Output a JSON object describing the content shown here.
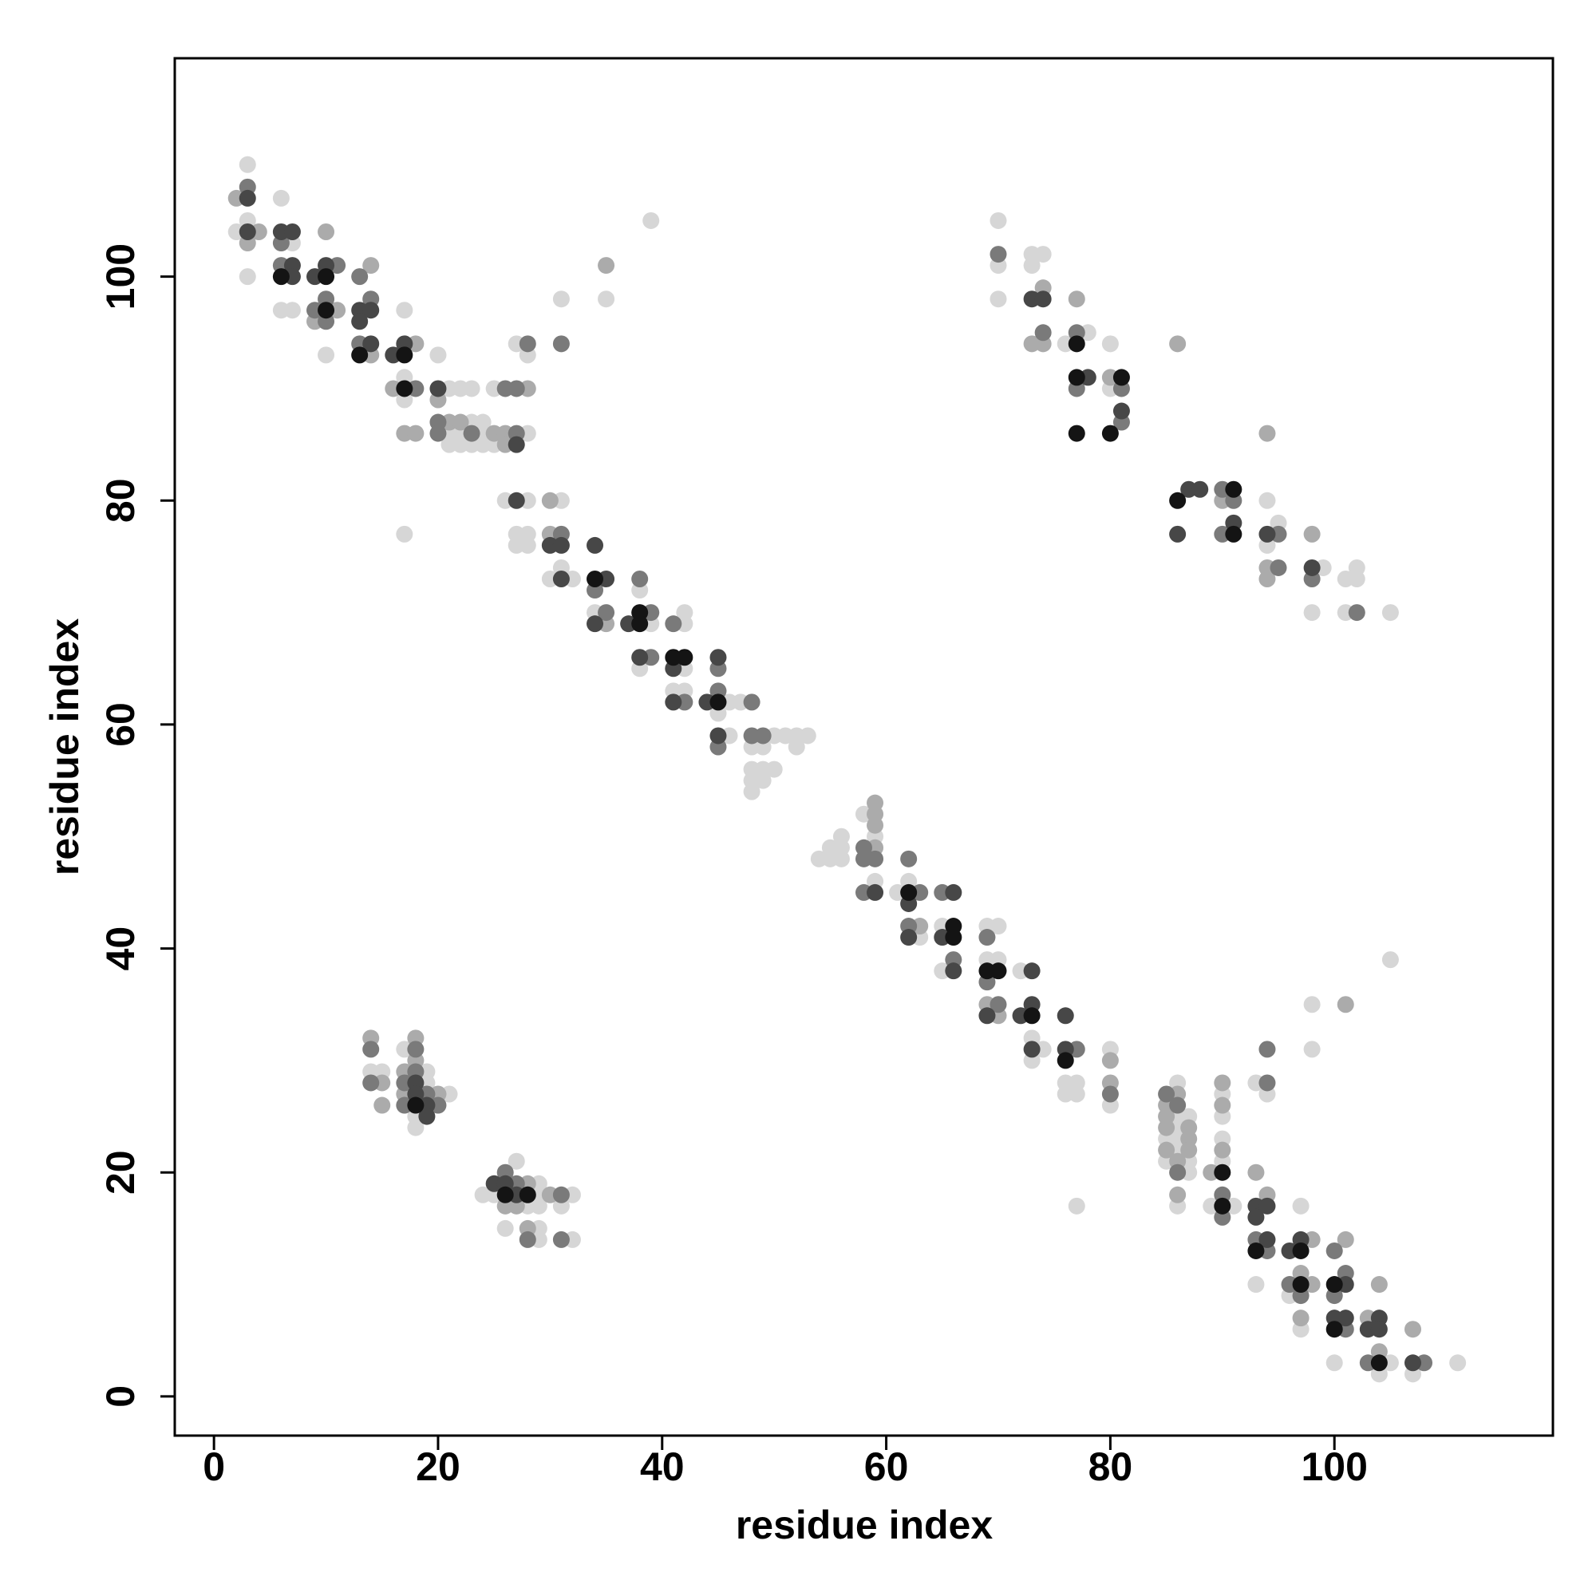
{
  "chart_data": {
    "type": "scatter",
    "xlabel": "residue index",
    "ylabel": "residue index",
    "xlim": [
      -3.5,
      119.5
    ],
    "ylim": [
      -3.5,
      119.5
    ],
    "xticks": [
      0,
      20,
      40,
      60,
      80,
      100
    ],
    "yticks": [
      0,
      20,
      40,
      60,
      80,
      100
    ],
    "grid": false,
    "series": [
      {
        "color": "#d6d6d6",
        "x": [
          3,
          2,
          3,
          3,
          6,
          7,
          6,
          7,
          10,
          17,
          17,
          17,
          17,
          20,
          21,
          22,
          23,
          23,
          24,
          21,
          22,
          24,
          21,
          22,
          23,
          24,
          25,
          25,
          27,
          28,
          28,
          26,
          28,
          27,
          28,
          27,
          28,
          31,
          31,
          30,
          32,
          31,
          34,
          35,
          39,
          38,
          39,
          38,
          42,
          42,
          42,
          41,
          42,
          45,
          46,
          47,
          46,
          48,
          49,
          50,
          51,
          52,
          53,
          52,
          48,
          49,
          50,
          48,
          49,
          48,
          54,
          55,
          55,
          56,
          56,
          56,
          58,
          59,
          59,
          61,
          62,
          63,
          65,
          65,
          69,
          70,
          69,
          70,
          72,
          73,
          74,
          73,
          76,
          77,
          76,
          77,
          80,
          80,
          77,
          86,
          86,
          87,
          86,
          85,
          86,
          86,
          85,
          87,
          87,
          86,
          90,
          90,
          90,
          90,
          89,
          91,
          93,
          94,
          93,
          97,
          96,
          97,
          100,
          105,
          104,
          107,
          111,
          98,
          98,
          105,
          14,
          15,
          17,
          19,
          19,
          21,
          18,
          18,
          24,
          27,
          25,
          28,
          29,
          29,
          29,
          26,
          29,
          29,
          32,
          31,
          32,
          70,
          70,
          70,
          73,
          74,
          73,
          76,
          78,
          80,
          80,
          94,
          95,
          94,
          99,
          101,
          102,
          102,
          98,
          101,
          105
        ],
        "y": [
          110,
          104,
          105,
          100,
          107,
          103,
          97,
          97,
          93,
          97,
          91,
          89,
          77,
          93,
          90,
          90,
          90,
          87,
          87,
          86,
          86,
          86,
          85,
          85,
          85,
          85,
          85,
          90,
          94,
          93,
          86,
          80,
          80,
          77,
          77,
          76,
          76,
          80,
          74,
          73,
          73,
          98,
          70,
          98,
          105,
          72,
          69,
          65,
          70,
          69,
          65,
          63,
          63,
          61,
          62,
          62,
          59,
          58,
          58,
          59,
          59,
          59,
          59,
          58,
          56,
          56,
          56,
          55,
          55,
          54,
          48,
          48,
          49,
          48,
          50,
          49,
          52,
          50,
          46,
          45,
          46,
          41,
          42,
          38,
          42,
          42,
          39,
          39,
          38,
          32,
          31,
          30,
          28,
          28,
          27,
          27,
          31,
          26,
          17,
          28,
          25,
          25,
          24,
          23,
          23,
          22,
          21,
          21,
          20,
          17,
          27,
          25,
          23,
          21,
          17,
          17,
          28,
          27,
          10,
          17,
          9,
          6,
          3,
          3,
          2,
          2,
          3,
          35,
          31,
          39,
          29,
          29,
          31,
          29,
          28,
          27,
          25,
          24,
          18,
          21,
          18,
          17,
          18,
          17,
          19,
          15,
          15,
          14,
          18,
          17,
          14,
          105,
          101,
          98,
          102,
          102,
          101,
          94,
          95,
          94,
          90,
          80,
          78,
          76,
          74,
          73,
          74,
          73,
          70,
          70,
          70
        ]
      },
      {
        "color": "#ababab",
        "x": [
          2,
          3,
          4,
          10,
          11,
          9,
          14,
          14,
          18,
          16,
          17,
          18,
          20,
          21,
          22,
          25,
          26,
          26,
          28,
          30,
          30,
          35,
          59,
          59,
          59,
          59,
          63,
          69,
          70,
          80,
          80,
          86,
          85,
          85,
          85,
          87,
          87,
          85,
          87,
          86,
          86,
          90,
          90,
          90,
          89,
          93,
          94,
          97,
          98,
          97,
          98,
          101,
          103,
          104,
          104,
          107,
          101,
          14,
          15,
          15,
          18,
          17,
          18,
          17,
          20,
          26,
          27,
          28,
          28,
          30,
          74,
          73,
          74,
          77,
          80,
          86,
          90,
          94,
          94,
          94,
          98,
          35
        ],
        "y": [
          107,
          103,
          104,
          104,
          97,
          96,
          101,
          93,
          94,
          90,
          86,
          86,
          89,
          87,
          87,
          86,
          86,
          85,
          90,
          80,
          77,
          69,
          53,
          52,
          49,
          51,
          42,
          35,
          34,
          30,
          28,
          27,
          26,
          25,
          24,
          24,
          23,
          22,
          22,
          21,
          18,
          28,
          26,
          22,
          20,
          20,
          18,
          11,
          10,
          7,
          14,
          14,
          7,
          10,
          4,
          6,
          35,
          32,
          28,
          26,
          32,
          29,
          30,
          27,
          27,
          17,
          17,
          19,
          15,
          18,
          99,
          94,
          94,
          98,
          91,
          94,
          80,
          86,
          74,
          73,
          77,
          101
        ]
      },
      {
        "color": "#7a7a7a",
        "x": [
          3,
          6,
          6,
          11,
          9,
          10,
          10,
          13,
          14,
          13,
          18,
          20,
          20,
          23,
          26,
          27,
          28,
          27,
          31,
          31,
          35,
          34,
          38,
          39,
          39,
          41,
          42,
          45,
          45,
          48,
          45,
          48,
          49,
          58,
          58,
          59,
          58,
          62,
          63,
          62,
          65,
          66,
          69,
          69,
          70,
          77,
          80,
          85,
          86,
          86,
          90,
          90,
          94,
          94,
          93,
          94,
          96,
          97,
          100,
          101,
          100,
          101,
          103,
          108,
          14,
          14,
          18,
          18,
          17,
          19,
          17,
          20,
          26,
          27,
          28,
          31,
          31,
          70,
          74,
          77,
          77,
          81,
          81,
          90,
          91,
          90,
          95,
          95,
          98,
          102
        ],
        "y": [
          108,
          103,
          101,
          101,
          97,
          96,
          98,
          100,
          98,
          94,
          90,
          87,
          86,
          86,
          90,
          90,
          94,
          86,
          77,
          94,
          70,
          72,
          73,
          70,
          66,
          69,
          62,
          65,
          63,
          62,
          58,
          59,
          59,
          49,
          48,
          48,
          45,
          48,
          45,
          42,
          45,
          39,
          41,
          37,
          35,
          31,
          27,
          27,
          26,
          20,
          18,
          16,
          28,
          31,
          14,
          13,
          10,
          9,
          13,
          11,
          9,
          6,
          3,
          3,
          31,
          28,
          31,
          29,
          28,
          27,
          26,
          26,
          20,
          19,
          14,
          18,
          14,
          102,
          95,
          95,
          90,
          90,
          87,
          81,
          80,
          77,
          77,
          74,
          73,
          70
        ]
      },
      {
        "color": "#474747",
        "x": [
          3,
          3,
          6,
          7,
          7,
          7,
          9,
          10,
          13,
          14,
          13,
          14,
          16,
          17,
          20,
          27,
          27,
          30,
          31,
          31,
          34,
          35,
          34,
          37,
          38,
          41,
          41,
          44,
          45,
          45,
          59,
          62,
          62,
          66,
          65,
          66,
          69,
          73,
          72,
          73,
          73,
          76,
          76,
          93,
          94,
          93,
          94,
          96,
          97,
          101,
          100,
          101,
          104,
          103,
          104,
          107,
          18,
          18,
          19,
          19,
          25,
          26,
          27,
          73,
          74,
          78,
          81,
          87,
          88,
          86,
          91,
          94,
          98
        ],
        "y": [
          107,
          104,
          104,
          104,
          101,
          100,
          100,
          101,
          97,
          97,
          96,
          94,
          93,
          94,
          90,
          85,
          80,
          76,
          76,
          73,
          76,
          73,
          69,
          69,
          66,
          65,
          62,
          62,
          66,
          59,
          45,
          44,
          41,
          45,
          41,
          38,
          34,
          38,
          34,
          35,
          31,
          34,
          31,
          17,
          17,
          16,
          14,
          13,
          14,
          10,
          7,
          7,
          7,
          6,
          6,
          3,
          28,
          27,
          26,
          25,
          19,
          19,
          18,
          98,
          98,
          91,
          88,
          81,
          81,
          77,
          78,
          77,
          74
        ]
      },
      {
        "color": "#141414",
        "x": [
          6,
          10,
          10,
          13,
          17,
          17,
          34,
          38,
          38,
          41,
          42,
          45,
          62,
          66,
          66,
          69,
          70,
          73,
          76,
          90,
          90,
          93,
          97,
          97,
          100,
          100,
          104,
          18,
          26,
          28,
          77,
          77,
          77,
          81,
          80,
          86,
          91,
          91
        ],
        "y": [
          100,
          100,
          97,
          93,
          93,
          90,
          73,
          70,
          69,
          66,
          66,
          62,
          45,
          42,
          41,
          38,
          38,
          34,
          30,
          20,
          17,
          13,
          13,
          10,
          10,
          6,
          3,
          26,
          18,
          18,
          94,
          91,
          86,
          91,
          86,
          80,
          81,
          77
        ]
      }
    ]
  }
}
